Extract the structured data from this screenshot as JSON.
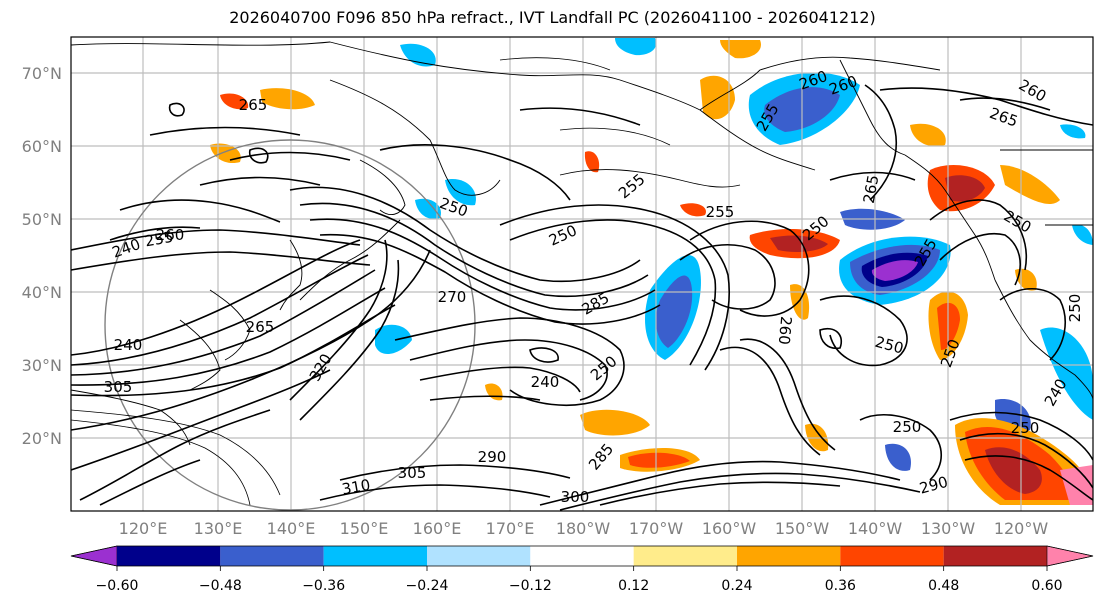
{
  "title": "2026040700 F096 850 hPa refract., IVT Landfall PC (2026041100 - 2026041212)",
  "lat_labels": [
    "70°N",
    "60°N",
    "50°N",
    "40°N",
    "30°N",
    "20°N"
  ],
  "lon_labels": [
    "120°E",
    "130°E",
    "140°E",
    "150°E",
    "160°E",
    "170°E",
    "180°W",
    "170°W",
    "160°W",
    "150°W",
    "140°W",
    "130°W",
    "120°W"
  ],
  "colorbar": {
    "colors": [
      "#9b30d0",
      "#00008b",
      "#3a5fcd",
      "#00bfff",
      "#b0e2ff",
      "#ffffff",
      "#ffec8b",
      "#ffa500",
      "#ff4500",
      "#b22222",
      "#ff82ab"
    ],
    "ticks": [
      "−0.60",
      "−0.48",
      "−0.36",
      "−0.24",
      "−0.12",
      "0.12",
      "0.24",
      "0.36",
      "0.48",
      "0.60"
    ]
  },
  "contour_labels": [
    "265",
    "260",
    "255",
    "250",
    "240",
    "250",
    "255",
    "270",
    "265",
    "240",
    "305",
    "320",
    "285",
    "250",
    "260",
    "255",
    "250",
    "240",
    "250",
    "255",
    "260",
    "290",
    "305",
    "310",
    "300",
    "285",
    "250",
    "255",
    "260",
    "265",
    "250",
    "250",
    "290",
    "265",
    "250",
    "260",
    "250",
    "240"
  ]
}
